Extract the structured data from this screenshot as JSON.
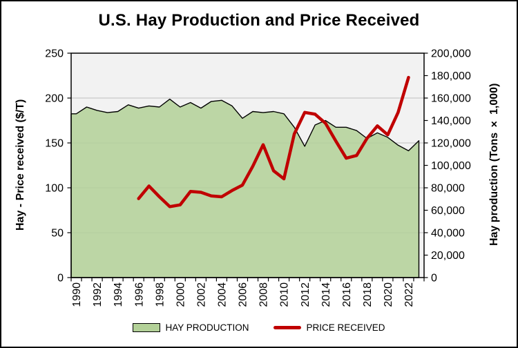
{
  "title": "U.S. Hay Production and Price Received",
  "left_axis_title": "Hay - Price received ($/T)",
  "right_axis_title": "Hay production (Tons × 1,000)",
  "legend": {
    "hay_production": "HAY PRODUCTION",
    "price_received": "PRICE RECEIVED"
  },
  "colors": {
    "area_fill": "#b3d198",
    "area_outline": "#000000",
    "price_line": "#c00000",
    "plot_bg": "#f2f2f2",
    "gridline": "#c9c9c9",
    "axis": "#000000"
  },
  "chart_data": {
    "type": "combo-area-line",
    "title": "U.S. Hay Production and Price Received",
    "grid": "horizontal",
    "legend_position": "bottom",
    "x_tick_labels": [
      "1990",
      "1992",
      "1994",
      "1996",
      "1998",
      "2000",
      "2002",
      "2004",
      "2006",
      "2008",
      "2010",
      "2012",
      "2014",
      "2016",
      "2018",
      "2020",
      "2022"
    ],
    "x_first_year": 1990,
    "x_last_year": 2023,
    "left_axis": {
      "label": "Hay - Price received ($/T)",
      "min": 0,
      "max": 250,
      "tick_step": 50,
      "tick_labels": [
        "0",
        "50",
        "100",
        "150",
        "200",
        "250"
      ]
    },
    "right_axis": {
      "label": "Hay production (Tons × 1,000)",
      "min": 0,
      "max": 200000,
      "tick_step": 20000,
      "tick_labels": [
        "0",
        "20,000",
        "40,000",
        "60,000",
        "80,000",
        "100,000",
        "120,000",
        "140,000",
        "160,000",
        "180,000",
        "200,000"
      ]
    },
    "series": [
      {
        "name": "HAY PRODUCTION",
        "type": "area",
        "axis": "right",
        "start_year": 1990,
        "values": [
          146000,
          152000,
          149000,
          147000,
          148000,
          154000,
          151000,
          153000,
          152000,
          159000,
          152000,
          156000,
          151000,
          157000,
          158000,
          153000,
          142000,
          148000,
          147000,
          148000,
          146000,
          134000,
          117000,
          136000,
          140000,
          134000,
          134000,
          131000,
          124000,
          129000,
          125000,
          118000,
          113000,
          122000
        ]
      },
      {
        "name": "PRICE RECEIVED",
        "type": "line",
        "axis": "left",
        "start_year": 1996,
        "values": [
          88,
          102,
          90,
          79,
          81,
          96,
          95,
          91,
          90,
          97,
          103,
          124,
          148,
          119,
          110,
          160,
          184,
          182,
          172,
          152,
          133,
          136,
          155,
          169,
          159,
          184,
          223
        ]
      }
    ]
  }
}
